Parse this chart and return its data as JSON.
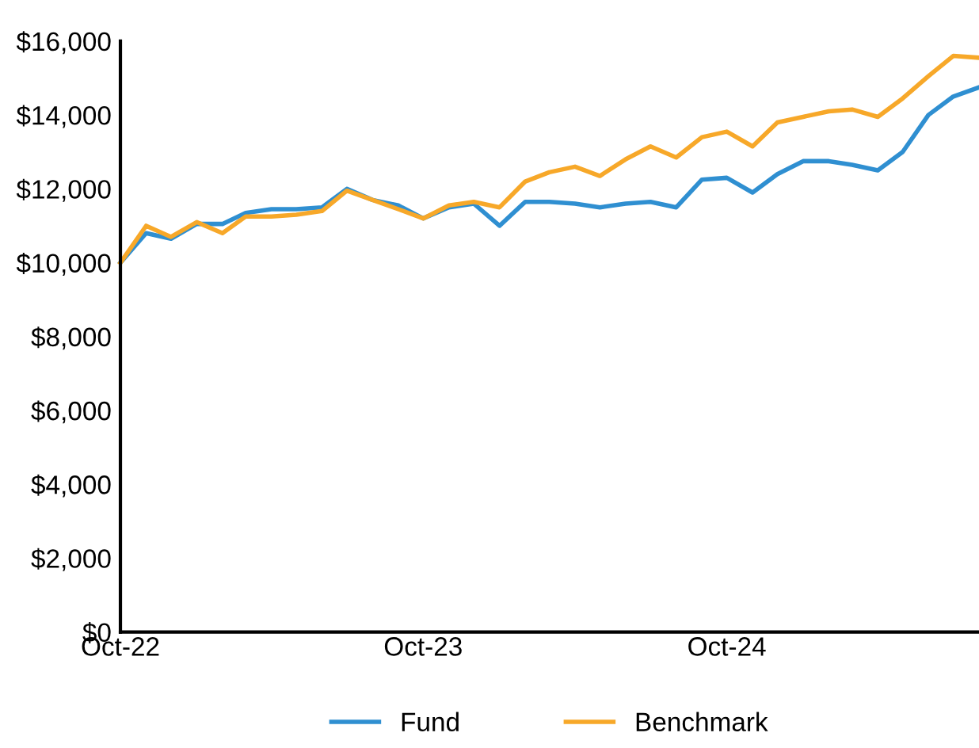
{
  "chart_data": {
    "type": "line",
    "x": [
      "2022-10",
      "2022-11",
      "2022-12",
      "2023-01",
      "2023-02",
      "2023-03",
      "2023-04",
      "2023-05",
      "2023-06",
      "2023-07",
      "2023-08",
      "2023-09",
      "2023-10",
      "2023-11",
      "2023-12",
      "2024-01",
      "2024-02",
      "2024-03",
      "2024-04",
      "2024-05",
      "2024-06",
      "2024-07",
      "2024-08",
      "2024-09",
      "2024-10",
      "2024-11",
      "2024-12",
      "2025-01",
      "2025-02",
      "2025-03",
      "2025-04",
      "2025-05",
      "2025-06",
      "2025-07",
      "2025-08"
    ],
    "series": [
      {
        "name": "Fund",
        "color": "#2f8fd1",
        "values": [
          10000,
          10800,
          10650,
          11050,
          11050,
          11350,
          11450,
          11450,
          11500,
          12000,
          11700,
          11550,
          11200,
          11500,
          11600,
          11000,
          11650,
          11650,
          11600,
          11500,
          11600,
          11650,
          11500,
          12250,
          12300,
          11900,
          12400,
          12750,
          12750,
          12650,
          12500,
          13000,
          14000,
          14500,
          14750
        ]
      },
      {
        "name": "Benchmark",
        "color": "#f7a829",
        "values": [
          10000,
          11000,
          10700,
          11100,
          10800,
          11250,
          11250,
          11300,
          11400,
          11950,
          11700,
          11450,
          11200,
          11550,
          11650,
          11500,
          12200,
          12450,
          12600,
          12350,
          12800,
          13150,
          12850,
          13400,
          13550,
          13150,
          13800,
          13950,
          14100,
          14150,
          13950,
          14450,
          15050,
          15600,
          15550
        ]
      }
    ],
    "xlim": [
      "2022-10",
      "2025-08"
    ],
    "xticks": [
      {
        "value": "2022-10",
        "label": "Oct-22"
      },
      {
        "value": "2023-10",
        "label": "Oct-23"
      },
      {
        "value": "2024-10",
        "label": "Oct-24"
      }
    ],
    "ylim": [
      0,
      16000
    ],
    "yticks": [
      {
        "value": 0,
        "label": "$0"
      },
      {
        "value": 2000,
        "label": "$2,000"
      },
      {
        "value": 4000,
        "label": "$4,000"
      },
      {
        "value": 6000,
        "label": "$6,000"
      },
      {
        "value": 8000,
        "label": "$8,000"
      },
      {
        "value": 10000,
        "label": "$10,000"
      },
      {
        "value": 12000,
        "label": "$12,000"
      },
      {
        "value": 14000,
        "label": "$14,000"
      },
      {
        "value": 16000,
        "label": "$16,000"
      }
    ],
    "grid": false,
    "legend": "bottom",
    "marker": "none",
    "line_style": "solid"
  }
}
